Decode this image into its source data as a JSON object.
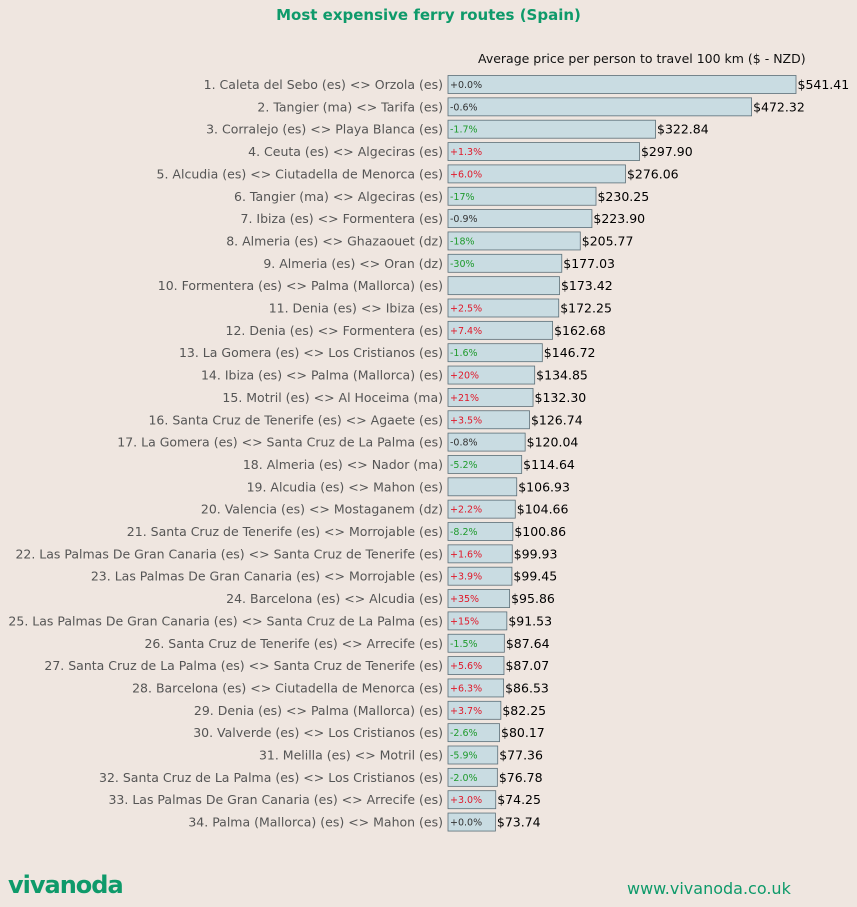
{
  "chart_data": {
    "type": "bar",
    "orientation": "horizontal",
    "title": "Most expensive ferry routes (Spain)",
    "subtitle": "Average price per person to travel 100 km ($ - NZD)",
    "categories": [
      "1. Caleta del Sebo (es) <> Orzola (es)",
      "2. Tangier (ma) <> Tarifa (es)",
      "3. Corralejo (es) <> Playa Blanca (es)",
      "4. Ceuta (es) <> Algeciras (es)",
      "5. Alcudia (es) <> Ciutadella de Menorca (es)",
      "6. Tangier (ma) <> Algeciras (es)",
      "7. Ibiza (es) <> Formentera (es)",
      "8. Almeria (es) <> Ghazaouet (dz)",
      "9. Almeria (es) <> Oran (dz)",
      "10. Formentera (es) <> Palma (Mallorca) (es)",
      "11. Denia (es) <> Ibiza (es)",
      "12. Denia (es) <> Formentera (es)",
      "13. La Gomera (es) <> Los Cristianos (es)",
      "14. Ibiza (es) <> Palma (Mallorca) (es)",
      "15. Motril (es) <> Al Hoceima (ma)",
      "16. Santa Cruz de Tenerife (es) <> Agaete (es)",
      "17. La Gomera (es) <> Santa Cruz de La Palma (es)",
      "18. Almeria (es) <> Nador (ma)",
      "19. Alcudia (es) <> Mahon (es)",
      "20. Valencia (es) <> Mostaganem (dz)",
      "21. Santa Cruz de Tenerife (es) <> Morrojable (es)",
      "22. Las Palmas De Gran Canaria (es) <> Santa Cruz de Tenerife (es)",
      "23. Las Palmas De Gran Canaria (es) <> Morrojable (es)",
      "24. Barcelona (es) <> Alcudia (es)",
      "25. Las Palmas De Gran Canaria (es) <> Santa Cruz de La Palma (es)",
      "26. Santa Cruz de Tenerife (es) <> Arrecife (es)",
      "27. Santa Cruz de La Palma (es) <> Santa Cruz de Tenerife (es)",
      "28. Barcelona (es) <> Ciutadella de Menorca (es)",
      "29. Denia (es) <> Palma (Mallorca) (es)",
      "30. Valverde (es) <> Los Cristianos (es)",
      "31. Melilla (es) <> Motril (es)",
      "32. Santa Cruz de La Palma (es) <> Los Cristianos (es)",
      "33. Las Palmas De Gran Canaria (es) <> Arrecife (es)",
      "34. Palma (Mallorca) (es) <> Mahon (es)"
    ],
    "values": [
      541.41,
      472.32,
      322.84,
      297.9,
      276.06,
      230.25,
      223.9,
      205.77,
      177.03,
      173.42,
      172.25,
      162.68,
      146.72,
      134.85,
      132.3,
      126.74,
      120.04,
      114.64,
      106.93,
      104.66,
      100.86,
      99.93,
      99.45,
      95.86,
      91.53,
      87.64,
      87.07,
      86.53,
      82.25,
      80.17,
      77.36,
      76.78,
      74.25,
      73.74
    ],
    "value_labels": [
      "$541.41",
      "$472.32",
      "$322.84",
      "$297.90",
      "$276.06",
      "$230.25",
      "$223.90",
      "$205.77",
      "$177.03",
      "$173.42",
      "$172.25",
      "$162.68",
      "$146.72",
      "$134.85",
      "$132.30",
      "$126.74",
      "$120.04",
      "$114.64",
      "$106.93",
      "$104.66",
      "$100.86",
      "$99.93",
      "$99.45",
      "$95.86",
      "$91.53",
      "$87.64",
      "$87.07",
      "$86.53",
      "$82.25",
      "$80.17",
      "$77.36",
      "$76.78",
      "$74.25",
      "$73.74"
    ],
    "changes": [
      "+0.0%",
      "-0.6%",
      "-1.7%",
      "+1.3%",
      "+6.0%",
      "-17%",
      "-0.9%",
      "-18%",
      "-30%",
      "",
      "+2.5%",
      "+7.4%",
      "-1.6%",
      "+20%",
      "+21%",
      "+3.5%",
      "-0.8%",
      "-5.2%",
      "",
      "+2.2%",
      "-8.2%",
      "+1.6%",
      "+3.9%",
      "+35%",
      "+15%",
      "-1.5%",
      "+5.6%",
      "+6.3%",
      "+3.7%",
      "-2.6%",
      "-5.9%",
      "-2.0%",
      "+3.0%",
      "+0.0%"
    ],
    "xlim": [
      0,
      541.41
    ],
    "grid": false,
    "colors": {
      "bar_fill": "#c9dce2",
      "bar_stroke": "#5c6f78",
      "increase": "#e0192a",
      "decrease": "#1f9b2d",
      "neutral": "#333333",
      "brand": "#0e9a6a",
      "background": "#efe6e0"
    }
  },
  "branding": {
    "logo": "vivanoda",
    "website": "www.vivanoda.co.uk"
  }
}
